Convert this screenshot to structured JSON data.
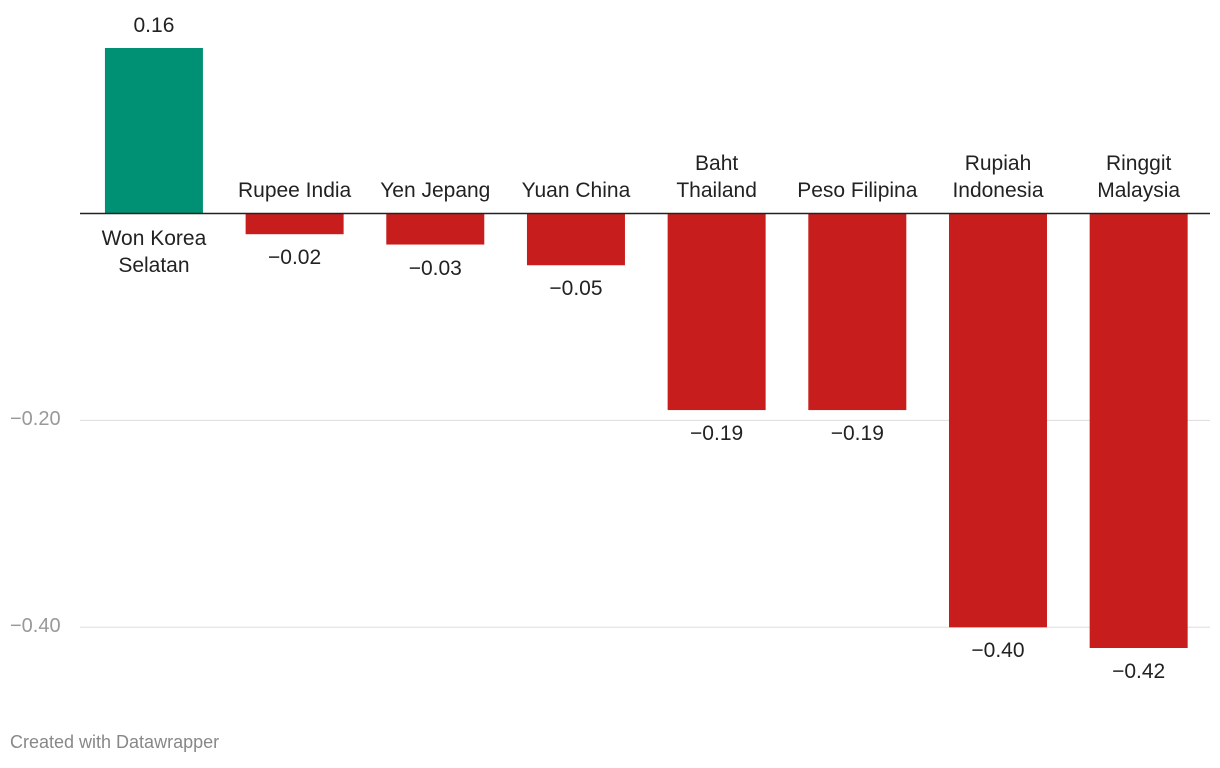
{
  "chart_data": {
    "type": "bar",
    "categories": [
      "Won Korea Selatan",
      "Rupee India",
      "Yen Jepang",
      "Yuan China",
      "Baht Thailand",
      "Peso Filipina",
      "Rupiah Indonesia",
      "Ringgit Malaysia"
    ],
    "values": [
      0.16,
      -0.02,
      -0.03,
      -0.05,
      -0.19,
      -0.19,
      -0.4,
      -0.42
    ],
    "value_labels": [
      "0.16",
      "−0.02",
      "−0.03",
      "−0.05",
      "−0.19",
      "−0.19",
      "−0.40",
      "−0.42"
    ],
    "positive_color": "#009175",
    "negative_color": "#c71e1d",
    "ylim": [
      -0.42,
      0.16
    ],
    "yticks": [
      {
        "value": -0.4,
        "label": "−0.40"
      },
      {
        "value": -0.2,
        "label": "−0.20"
      }
    ],
    "grid": true,
    "footer": "Created with Datawrapper"
  }
}
